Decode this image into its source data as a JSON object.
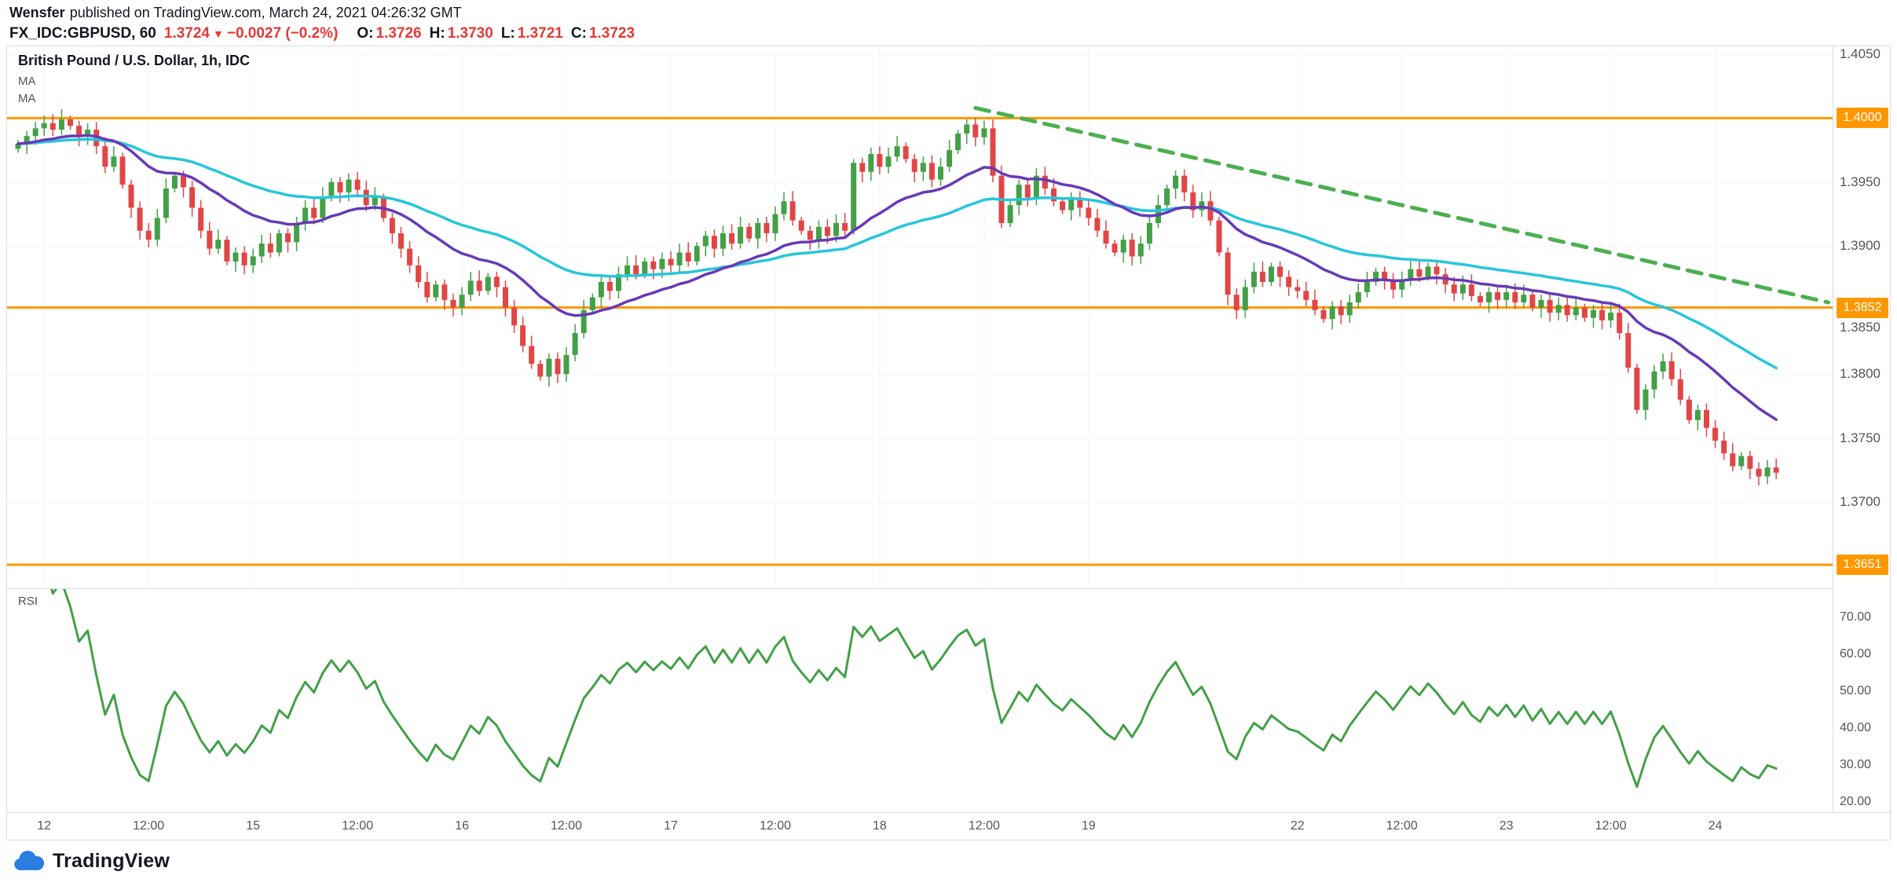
{
  "header": {
    "author": "Wensfer",
    "published_text": "published on TradingView.com, March 24, 2021 04:26:32 GMT",
    "symbol": "FX_IDC:GBPUSD, 60",
    "last_price": "1.3724",
    "direction_arrow": "▼",
    "change": "−0.0027 (−0.2%)",
    "ohlc": [
      {
        "label": "O:",
        "value": "1.3726"
      },
      {
        "label": "H:",
        "value": "1.3730"
      },
      {
        "label": "L:",
        "value": "1.3721"
      },
      {
        "label": "C:",
        "value": "1.3723"
      }
    ]
  },
  "main_pane": {
    "title": "British Pound / U.S. Dollar, 1h, IDC",
    "ma_labels": [
      "MA",
      "MA"
    ]
  },
  "footer": {
    "logo_text": "TradingView"
  },
  "colors": {
    "up_candle": "#43a047",
    "down_candle": "#e04646",
    "ma_fast_purple": "#673ab7",
    "ma_slow_cyan": "#26c6da",
    "level_orange": "#ff9800",
    "trend_green": "#4caf50",
    "rsi_green": "#43a047",
    "negative_red": "#e53935",
    "brand_blue": "#2a7de1",
    "text_dark": "#131722",
    "text_gray": "#555555"
  },
  "chart_data": {
    "type": "candlestick",
    "title": "British Pound / U.S. Dollar, 1h, IDC",
    "symbol": "GBPUSD",
    "timeframe": "1h",
    "x_axis": {
      "ticks": [
        {
          "text": "12",
          "index": 3
        },
        {
          "text": "12:00",
          "index": 15
        },
        {
          "text": "15",
          "index": 27
        },
        {
          "text": "12:00",
          "index": 39
        },
        {
          "text": "16",
          "index": 51
        },
        {
          "text": "12:00",
          "index": 63
        },
        {
          "text": "17",
          "index": 75
        },
        {
          "text": "12:00",
          "index": 87
        },
        {
          "text": "18",
          "index": 99
        },
        {
          "text": "12:00",
          "index": 111
        },
        {
          "text": "19",
          "index": 123
        },
        {
          "text": "22",
          "index": 147
        },
        {
          "text": "12:00",
          "index": 159
        },
        {
          "text": "23",
          "index": 171
        },
        {
          "text": "12:00",
          "index": 183
        },
        {
          "text": "24",
          "index": 195
        }
      ]
    },
    "y_axis": {
      "range": [
        1.36326,
        1.40561
      ],
      "labels": [
        {
          "text": "1.4050",
          "price": 1.405,
          "highlight": false
        },
        {
          "text": "1.4000",
          "price": 1.4,
          "highlight": true
        },
        {
          "text": "1.3950",
          "price": 1.395,
          "highlight": false
        },
        {
          "text": "1.3900",
          "price": 1.39,
          "highlight": false
        },
        {
          "text": "1.3852",
          "price": 1.3852,
          "highlight": true
        },
        {
          "text": "1.3850",
          "price": 1.385,
          "highlight": false
        },
        {
          "text": "1.3800",
          "price": 1.38,
          "highlight": false
        },
        {
          "text": "1.3750",
          "price": 1.375,
          "highlight": false
        },
        {
          "text": "1.3700",
          "price": 1.37,
          "highlight": false
        },
        {
          "text": "1.3651",
          "price": 1.3651,
          "highlight": true
        }
      ]
    },
    "candles": {
      "count": 203,
      "closes": [
        1.398,
        1.3986,
        1.3992,
        1.3996,
        1.3991,
        1.3999,
        1.3994,
        1.3986,
        1.3991,
        1.3978,
        1.3962,
        1.397,
        1.3948,
        1.393,
        1.3912,
        1.3905,
        1.3922,
        1.3945,
        1.3955,
        1.3946,
        1.393,
        1.3912,
        1.3898,
        1.3905,
        1.3888,
        1.3895,
        1.3885,
        1.3892,
        1.3902,
        1.3895,
        1.391,
        1.3903,
        1.3918,
        1.393,
        1.3922,
        1.3938,
        1.395,
        1.3942,
        1.3952,
        1.3944,
        1.3932,
        1.3938,
        1.3922,
        1.391,
        1.3898,
        1.3885,
        1.3872,
        1.386,
        1.387,
        1.3858,
        1.3852,
        1.3862,
        1.3873,
        1.3865,
        1.3876,
        1.3868,
        1.3852,
        1.3838,
        1.3822,
        1.3808,
        1.3798,
        1.3812,
        1.38,
        1.3815,
        1.3832,
        1.385,
        1.386,
        1.3872,
        1.3865,
        1.3878,
        1.3885,
        1.3878,
        1.3888,
        1.3882,
        1.389,
        1.3885,
        1.3895,
        1.3888,
        1.39,
        1.3908,
        1.3898,
        1.391,
        1.3902,
        1.3915,
        1.3906,
        1.3918,
        1.391,
        1.3925,
        1.3935,
        1.392,
        1.3912,
        1.3905,
        1.3915,
        1.3908,
        1.3918,
        1.3912,
        1.3965,
        1.3958,
        1.3972,
        1.3962,
        1.397,
        1.3978,
        1.3968,
        1.3958,
        1.3965,
        1.3952,
        1.3962,
        1.3975,
        1.3988,
        1.3995,
        1.3985,
        1.3992,
        1.3955,
        1.3918,
        1.3932,
        1.3948,
        1.3938,
        1.3955,
        1.3945,
        1.3935,
        1.3928,
        1.3938,
        1.393,
        1.3922,
        1.3912,
        1.3902,
        1.3895,
        1.3905,
        1.3892,
        1.3902,
        1.3918,
        1.3932,
        1.3945,
        1.3955,
        1.3942,
        1.3928,
        1.3935,
        1.392,
        1.3895,
        1.3862,
        1.385,
        1.3868,
        1.388,
        1.3872,
        1.3884,
        1.3876,
        1.3868,
        1.3865,
        1.3858,
        1.385,
        1.3843,
        1.3853,
        1.3846,
        1.3856,
        1.3864,
        1.3872,
        1.388,
        1.3874,
        1.3866,
        1.3874,
        1.3882,
        1.3876,
        1.3884,
        1.3878,
        1.387,
        1.3863,
        1.387,
        1.3861,
        1.3856,
        1.3864,
        1.3858,
        1.3864,
        1.3856,
        1.3862,
        1.3852,
        1.3858,
        1.3848,
        1.3854,
        1.3846,
        1.3852,
        1.3844,
        1.385,
        1.3842,
        1.3848,
        1.3832,
        1.3805,
        1.3772,
        1.3788,
        1.3802,
        1.381,
        1.3796,
        1.378,
        1.3764,
        1.3772,
        1.3758,
        1.3748,
        1.3738,
        1.3728,
        1.3736,
        1.3726,
        1.372,
        1.3727,
        1.3723
      ]
    },
    "overlays": {
      "moving_averages": [
        {
          "name": "MA fast",
          "type": "ema",
          "period": 20,
          "color": "#673ab7"
        },
        {
          "name": "MA slow",
          "type": "ema",
          "period": 45,
          "color": "#26c6da"
        }
      ],
      "horizontal_lines": [
        {
          "price": 1.4,
          "label": "1.4000",
          "color": "#ff9800"
        },
        {
          "price": 1.3852,
          "label": "1.3852",
          "color": "#ff9800"
        },
        {
          "price": 1.3651,
          "label": "1.3651",
          "color": "#ff9800"
        }
      ],
      "trendline": {
        "style": "dashed",
        "color": "#4caf50",
        "start_index": 110,
        "start_price": 1.4008,
        "end_index": 208,
        "end_price": 1.3856
      }
    },
    "rsi_pane": {
      "label": "RSI",
      "indicator": "RSI",
      "period": 14,
      "color": "#43a047",
      "y_axis": {
        "range": [
          17.2,
          77.9
        ],
        "values": [
          70,
          60,
          50,
          40,
          30,
          20
        ],
        "labels": [
          "70.00",
          "60.00",
          "50.00",
          "40.00",
          "30.00",
          "20.00"
        ]
      }
    }
  }
}
